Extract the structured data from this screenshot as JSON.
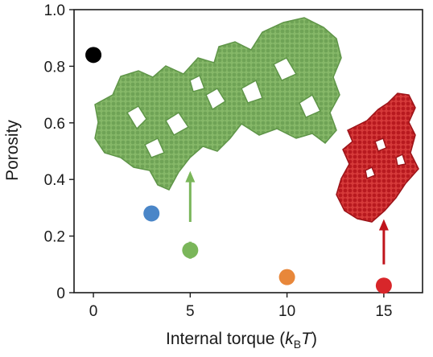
{
  "chart_data": {
    "type": "scatter",
    "title": "",
    "xlabel": {
      "prefix": "Internal torque (",
      "k": "k",
      "sub": "B",
      "T": "T",
      "suffix": ")"
    },
    "ylabel": "Porosity",
    "xlim": [
      -1,
      17
    ],
    "ylim": [
      0,
      1.0
    ],
    "x_ticks": [
      0,
      5,
      10,
      15
    ],
    "x_tick_labels": [
      "0",
      "5",
      "10",
      "15"
    ],
    "y_ticks": [
      0,
      0.2,
      0.4,
      0.6,
      0.8,
      1.0
    ],
    "y_tick_labels": [
      "0",
      "0.2",
      "0.4",
      "0.6",
      "0.8",
      "1.0"
    ],
    "grid": false,
    "points": [
      {
        "x": 0,
        "y": 0.84,
        "err": 0.005,
        "color": "#000000"
      },
      {
        "x": 3,
        "y": 0.28,
        "err": 0.005,
        "color": "#4a86c8"
      },
      {
        "x": 5,
        "y": 0.15,
        "err": 0.03,
        "color": "#7ab65a"
      },
      {
        "x": 10,
        "y": 0.055,
        "err": 0.025,
        "color": "#e8873a"
      },
      {
        "x": 15,
        "y": 0.025,
        "err": 0.005,
        "color": "#d8262a"
      }
    ],
    "arrows": [
      {
        "x": 5,
        "y_from": 0.25,
        "y_to": 0.43,
        "color": "#7ab65a"
      },
      {
        "x": 15,
        "y_from": 0.1,
        "y_to": 0.26,
        "color": "#c0141c"
      }
    ],
    "inset_clusters": [
      {
        "name": "porous-cluster",
        "color": "#7aaf5c"
      },
      {
        "name": "compact-cluster",
        "color": "#c8232a"
      }
    ]
  }
}
